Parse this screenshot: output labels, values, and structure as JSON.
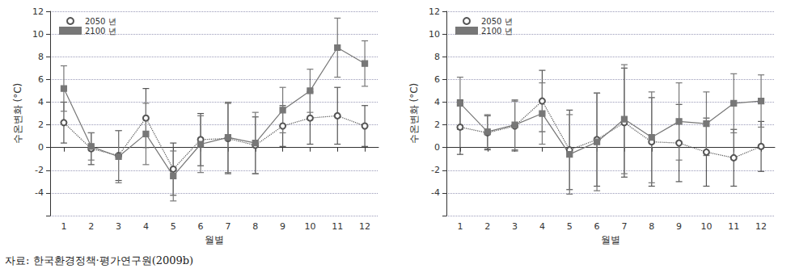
{
  "chart_data": [
    {
      "type": "line",
      "x_label": "월별",
      "y_label": "수온변화 (°C)",
      "categories": [
        "1",
        "2",
        "3",
        "4",
        "5",
        "6",
        "7",
        "8",
        "9",
        "10",
        "11",
        "12"
      ],
      "ylim": [
        -6,
        12
      ],
      "yticks": [
        -4,
        -2,
        0,
        2,
        4,
        6,
        8,
        10,
        12
      ],
      "grid": true,
      "legend": "upper left",
      "series": [
        {
          "name": "2050 년",
          "color": "#555555",
          "marker": "open_circle",
          "line_style": "dotted",
          "values": [
            2.2,
            -0.1,
            -0.7,
            2.6,
            -1.9,
            0.7,
            0.8,
            0.2,
            1.9,
            2.6,
            2.8,
            1.9
          ],
          "errors": [
            1.8,
            1.4,
            2.2,
            2.6,
            2.3,
            2.3,
            3.1,
            2.5,
            1.8,
            2.3,
            2.5,
            1.8
          ]
        },
        {
          "name": "2100 년",
          "color": "#777777",
          "marker": "square",
          "line_style": "solid",
          "values": [
            5.2,
            0.1,
            -0.8,
            1.2,
            -2.5,
            0.3,
            0.9,
            0.4,
            3.3,
            5.0,
            8.8,
            7.4
          ],
          "errors": [
            2.0,
            1.2,
            2.3,
            2.7,
            2.2,
            2.5,
            3.1,
            2.7,
            2.0,
            1.9,
            2.6,
            2.0
          ]
        }
      ]
    },
    {
      "type": "line",
      "x_label": "월별",
      "y_label": "수온변화 (°C)",
      "categories": [
        "1",
        "2",
        "3",
        "4",
        "5",
        "6",
        "7",
        "8",
        "9",
        "10",
        "11",
        "12"
      ],
      "ylim": [
        -6,
        12
      ],
      "yticks": [
        -4,
        -2,
        0,
        2,
        4,
        6,
        8,
        10,
        12
      ],
      "grid": true,
      "legend": "upper left",
      "series": [
        {
          "name": "2050 년",
          "color": "#555555",
          "marker": "open_circle",
          "line_style": "dotted",
          "values": [
            1.8,
            1.3,
            1.9,
            4.1,
            -0.2,
            0.7,
            2.2,
            0.5,
            0.4,
            -0.4,
            -0.9,
            0.1
          ],
          "errors": [
            2.4,
            1.5,
            2.2,
            2.7,
            3.5,
            4.1,
            4.8,
            3.9,
            3.4,
            3.0,
            2.5,
            2.2
          ]
        },
        {
          "name": "2100 년",
          "color": "#777777",
          "marker": "square",
          "line_style": "solid",
          "values": [
            3.9,
            1.4,
            2.0,
            3.0,
            -0.6,
            0.5,
            2.5,
            0.9,
            2.3,
            2.1,
            3.9,
            4.1
          ],
          "errors": [
            2.3,
            1.5,
            2.2,
            2.7,
            3.5,
            4.3,
            4.8,
            4.0,
            3.4,
            2.8,
            2.6,
            2.3
          ]
        }
      ]
    }
  ],
  "source": "자료: 한국환경정책·평가연구원(2009b)"
}
